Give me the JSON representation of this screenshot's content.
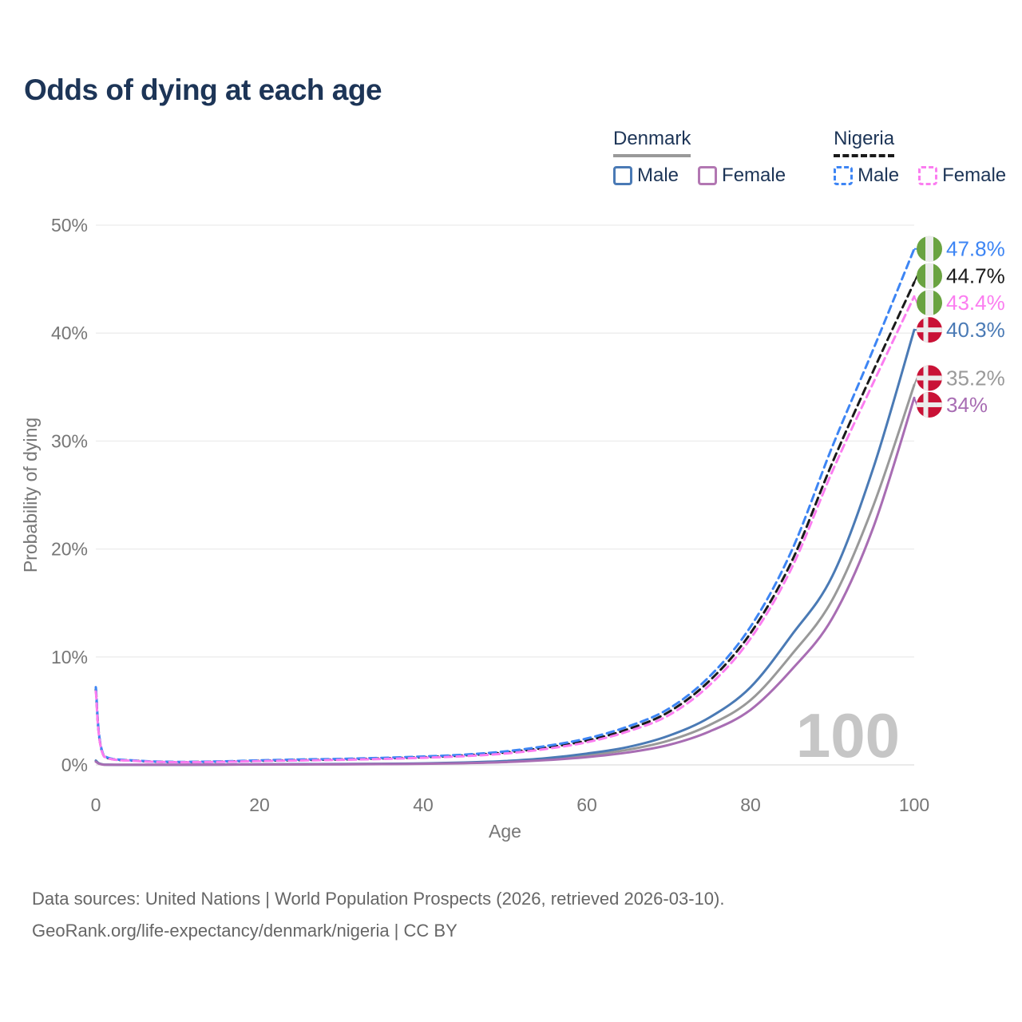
{
  "title": "Odds of dying at each age",
  "legend": {
    "groups": [
      {
        "country": "Denmark",
        "style_css": "solid",
        "avg_color": "#999999",
        "items": [
          {
            "label": "Male",
            "color": "#4a7ab5"
          },
          {
            "label": "Female",
            "color": "#b277b2"
          }
        ]
      },
      {
        "country": "Nigeria",
        "style_css": "dashed",
        "avg_color": "#1a1a1a",
        "items": [
          {
            "label": "Male",
            "color": "#3d85f4"
          },
          {
            "label": "Female",
            "color": "#fb7df0"
          }
        ]
      }
    ]
  },
  "chart_data": {
    "type": "line",
    "title": "Odds of dying at each age",
    "xlabel": "Age",
    "ylabel": "Probability of dying",
    "xlim": [
      0,
      100
    ],
    "ylim": [
      0,
      50
    ],
    "xticks": [
      0,
      20,
      40,
      60,
      80,
      100
    ],
    "yticks": [
      0,
      10,
      20,
      30,
      40,
      50
    ],
    "ytick_suffix": "%",
    "grid": "horizontal",
    "legend_position": "top-right",
    "watermark": "100",
    "ages": [
      0,
      1,
      5,
      10,
      15,
      20,
      25,
      30,
      35,
      40,
      45,
      50,
      55,
      60,
      65,
      70,
      75,
      80,
      85,
      90,
      95,
      100
    ],
    "series": [
      {
        "id": "denmark-avg",
        "name": "Denmark",
        "country": "denmark",
        "color": "#999999",
        "dash": false,
        "end_label": "35.2%",
        "values": [
          0.35,
          0.03,
          0.01,
          0.01,
          0.02,
          0.05,
          0.06,
          0.07,
          0.09,
          0.12,
          0.19,
          0.31,
          0.53,
          0.88,
          1.4,
          2.25,
          3.7,
          6.0,
          10.2,
          15.3,
          24.0,
          35.2
        ]
      },
      {
        "id": "denmark-male",
        "name": "Denmark Male",
        "country": "denmark",
        "color": "#4a7ab5",
        "dash": false,
        "end_label": "40.3%",
        "values": [
          0.4,
          0.03,
          0.01,
          0.01,
          0.03,
          0.06,
          0.07,
          0.08,
          0.1,
          0.14,
          0.22,
          0.36,
          0.62,
          1.05,
          1.65,
          2.7,
          4.4,
          7.2,
          12.0,
          17.5,
          27.5,
          40.3
        ]
      },
      {
        "id": "denmark-female",
        "name": "Denmark Female",
        "country": "denmark",
        "color": "#a86db3",
        "dash": false,
        "end_label": "34%",
        "values": [
          0.3,
          0.02,
          0.01,
          0.01,
          0.02,
          0.03,
          0.04,
          0.05,
          0.07,
          0.1,
          0.16,
          0.26,
          0.44,
          0.72,
          1.15,
          1.85,
          3.1,
          5.1,
          8.8,
          13.6,
          22.0,
          34.0
        ]
      },
      {
        "id": "nigeria-avg",
        "name": "Nigeria",
        "country": "nigeria",
        "color": "#1a1a1a",
        "dash": true,
        "end_label": "44.7%",
        "values": [
          7.0,
          0.8,
          0.38,
          0.26,
          0.3,
          0.38,
          0.45,
          0.51,
          0.6,
          0.71,
          0.88,
          1.15,
          1.6,
          2.25,
          3.3,
          4.9,
          7.8,
          12.2,
          18.8,
          28.0,
          36.5,
          44.7
        ]
      },
      {
        "id": "nigeria-male",
        "name": "Nigeria Male",
        "country": "nigeria",
        "color": "#3d85f4",
        "dash": true,
        "end_label": "47.8%",
        "values": [
          7.2,
          0.85,
          0.4,
          0.28,
          0.32,
          0.42,
          0.5,
          0.56,
          0.65,
          0.78,
          0.95,
          1.25,
          1.75,
          2.45,
          3.55,
          5.2,
          8.2,
          12.8,
          19.8,
          29.5,
          38.5,
          47.8
        ]
      },
      {
        "id": "nigeria-female",
        "name": "Nigeria Female",
        "country": "nigeria",
        "color": "#fb7df0",
        "dash": true,
        "end_label": "43.4%",
        "values": [
          6.8,
          0.78,
          0.36,
          0.25,
          0.28,
          0.35,
          0.41,
          0.47,
          0.55,
          0.66,
          0.81,
          1.05,
          1.48,
          2.1,
          3.1,
          4.6,
          7.4,
          11.7,
          18.2,
          27.2,
          35.4,
          43.4
        ]
      }
    ],
    "flag_colors": {
      "denmark_red": "#c91236",
      "nigeria_green": "#6aa341",
      "flag_white": "#ececec"
    },
    "axis_text_color": "#767676",
    "grid_color": "#ececec",
    "watermark_color": "#c6c6c6"
  },
  "footer": {
    "line1": "Data sources: United Nations | World Population Prospects (2026, retrieved 2026-03-10).",
    "line2": "GeoRank.org/life-expectancy/denmark/nigeria | CC BY"
  }
}
